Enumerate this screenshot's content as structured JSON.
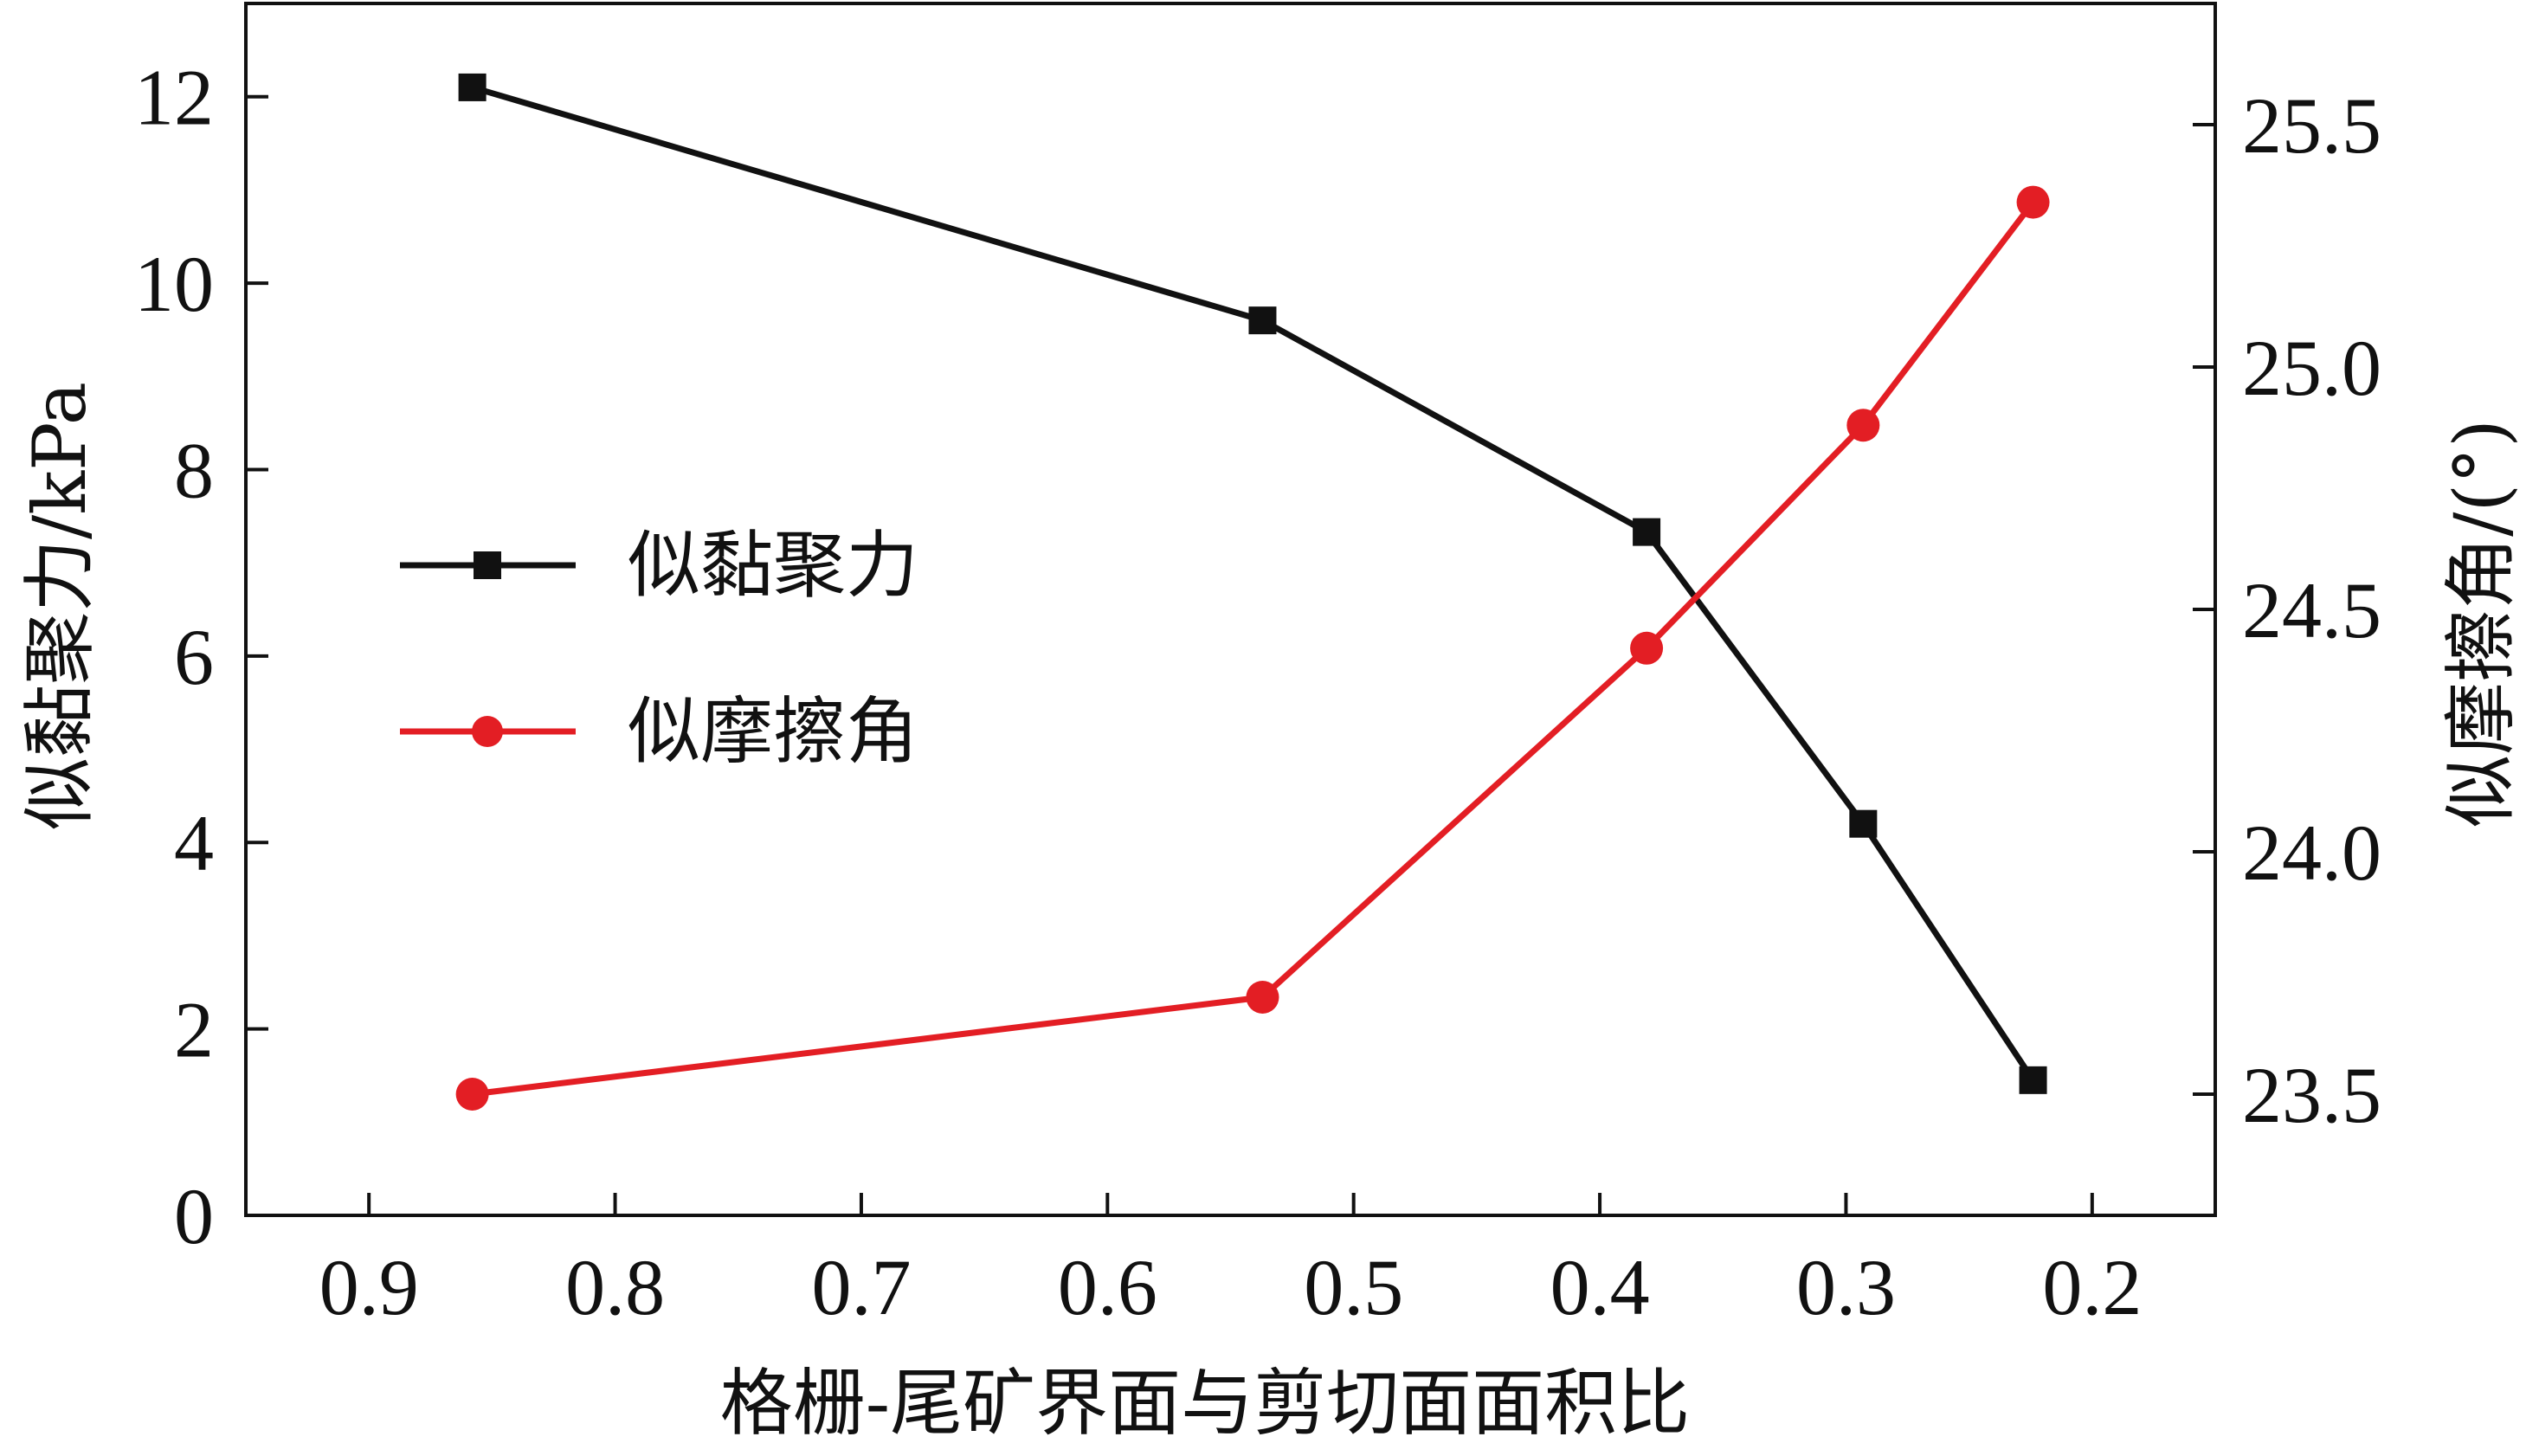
{
  "chart_data": {
    "type": "line",
    "title": "",
    "xlabel": "格栅-尾矿界面与剪切面面积比",
    "ylabel_left": "似黏聚力/kPa",
    "ylabel_right": "似摩擦角/(°)",
    "xlim": [
      0.95,
      0.15
    ],
    "x_reversed": true,
    "ylim_left": [
      0,
      13
    ],
    "ylim_right": [
      23.25,
      25.75
    ],
    "xticks": [
      0.9,
      0.8,
      0.7,
      0.6,
      0.5,
      0.4,
      0.3,
      0.2
    ],
    "xtick_labels": [
      "0.9",
      "0.8",
      "0.7",
      "0.6",
      "0.5",
      "0.4",
      "0.3",
      "0.2"
    ],
    "yticks_left": [
      0,
      2,
      4,
      6,
      8,
      10,
      12
    ],
    "ytick_labels_left": [
      "0",
      "2",
      "4",
      "6",
      "8",
      "10",
      "12"
    ],
    "yticks_right": [
      23.5,
      24.0,
      24.5,
      25.0,
      25.5
    ],
    "ytick_labels_right": [
      "23.5",
      "24.0",
      "24.5",
      "25.0",
      "25.5"
    ],
    "grid": false,
    "legend_position": "center-left",
    "series": [
      {
        "name": "似黏聚力",
        "axis": "left",
        "color": "#111111",
        "marker": "square",
        "x": [
          0.858,
          0.537,
          0.381,
          0.293,
          0.224
        ],
        "y": [
          12.1,
          9.6,
          7.33,
          4.2,
          1.45
        ]
      },
      {
        "name": "似摩擦角",
        "axis": "right",
        "color": "#e31e24",
        "marker": "circle",
        "x": [
          0.858,
          0.537,
          0.381,
          0.293,
          0.224
        ],
        "y": [
          23.5,
          23.7,
          24.42,
          24.88,
          25.34
        ]
      }
    ]
  }
}
